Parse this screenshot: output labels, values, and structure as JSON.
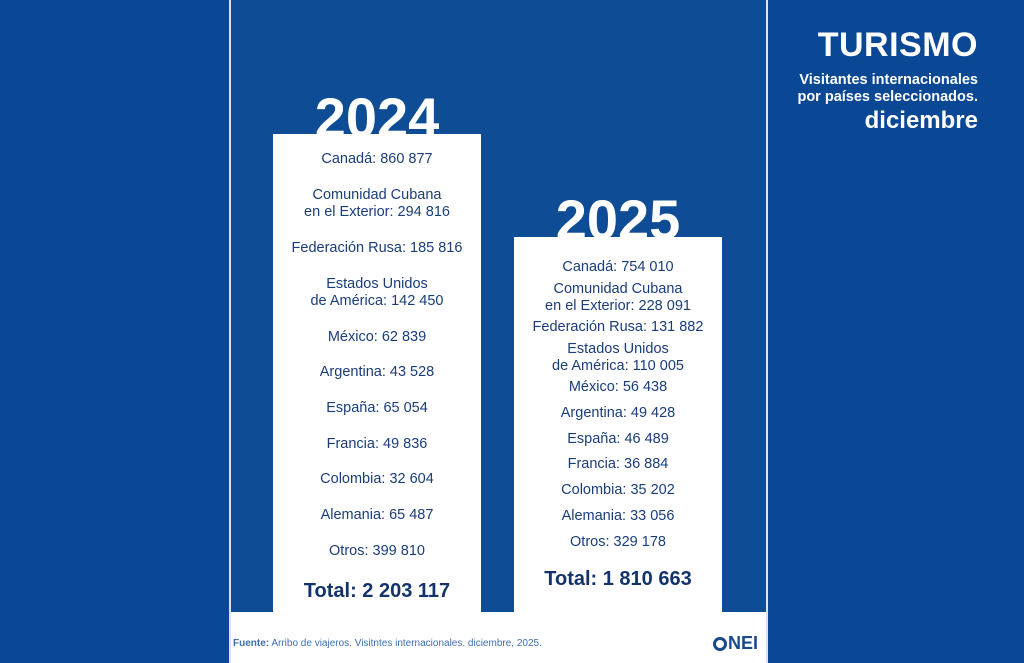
{
  "header": {
    "title": "TURISMO",
    "subtitle_line1": "Visitantes internacionales",
    "subtitle_line2": "por países seleccionados.",
    "month": "diciembre"
  },
  "colors": {
    "background": "#0a4795",
    "panel": "#0f4c96",
    "card": "#ffffff",
    "text_dark": "#1a3d7a"
  },
  "chart_data": {
    "type": "table",
    "title": "TURISMO",
    "series": [
      {
        "name": "2024",
        "rows": [
          {
            "label": "Canadá: 860 877",
            "country": "Canadá",
            "value": 860877
          },
          {
            "label": "Comunidad Cubana\nen el Exterior: 294 816",
            "country": "Comunidad Cubana en el Exterior",
            "value": 294816
          },
          {
            "label": "Federación Rusa: 185 816",
            "country": "Federación Rusa",
            "value": 185816
          },
          {
            "label": "Estados Unidos\nde América: 142 450",
            "country": "Estados Unidos de América",
            "value": 142450
          },
          {
            "label": "México: 62 839",
            "country": "México",
            "value": 62839
          },
          {
            "label": "Argentina: 43 528",
            "country": "Argentina",
            "value": 43528
          },
          {
            "label": "España: 65 054",
            "country": "España",
            "value": 65054
          },
          {
            "label": "Francia: 49 836",
            "country": "Francia",
            "value": 49836
          },
          {
            "label": "Colombia: 32 604",
            "country": "Colombia",
            "value": 32604
          },
          {
            "label": "Alemania: 65 487",
            "country": "Alemania",
            "value": 65487
          },
          {
            "label": "Otros: 399 810",
            "country": "Otros",
            "value": 399810
          }
        ],
        "total_label": "Total: 2 203 117",
        "total": 2203117
      },
      {
        "name": "2025",
        "rows": [
          {
            "label": "Canadá: 754 010",
            "country": "Canadá",
            "value": 754010
          },
          {
            "label": "Comunidad Cubana\nen el Exterior: 228 091",
            "country": "Comunidad Cubana en el Exterior",
            "value": 228091
          },
          {
            "label": "Federación Rusa: 131 882",
            "country": "Federación Rusa",
            "value": 131882
          },
          {
            "label": "Estados Unidos\nde América: 110 005",
            "country": "Estados Unidos de América",
            "value": 110005
          },
          {
            "label": "México: 56 438",
            "country": "México",
            "value": 56438
          },
          {
            "label": "Argentina: 49 428",
            "country": "Argentina",
            "value": 49428
          },
          {
            "label": "España: 46 489",
            "country": "España",
            "value": 46489
          },
          {
            "label": "Francia: 36 884",
            "country": "Francia",
            "value": 36884
          },
          {
            "label": "Colombia: 35 202",
            "country": "Colombia",
            "value": 35202
          },
          {
            "label": "Alemania: 33 056",
            "country": "Alemania",
            "value": 33056
          },
          {
            "label": "Otros: 329 178",
            "country": "Otros",
            "value": 329178
          }
        ],
        "total_label": "Total: 1 810 663",
        "total": 1810663
      }
    ]
  },
  "footer": {
    "source_label": "Fuente:",
    "source_text": " Arribo de viajeros. Visitntes internacionales. diciembre, 2025.",
    "logo_text": "NEI"
  }
}
